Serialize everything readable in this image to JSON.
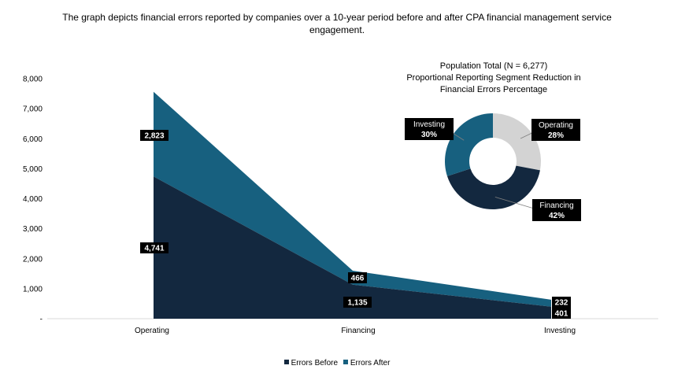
{
  "page_title": {
    "line1": "The graph depicts financial errors reported by companies over a 10-year period before and after CPA financial management service",
    "line2": "engagement."
  },
  "colors": {
    "errors_before": "#13283F",
    "errors_after": "#17607F",
    "pie_operating": "#D3D3D3",
    "pie_financing": "#13283F",
    "pie_investing": "#17607F",
    "label_bg": "#000000",
    "axis": "#D9D9D9"
  },
  "legend": {
    "before_label": "Errors Before",
    "after_label": "Errors After"
  },
  "chart_data": [
    {
      "type": "area",
      "stacked": true,
      "categories": [
        "Operating",
        "Financing",
        "Investing"
      ],
      "series": [
        {
          "name": "Errors Before",
          "values": [
            4741,
            1135,
            401
          ]
        },
        {
          "name": "Errors After",
          "values": [
            2823,
            466,
            232
          ]
        }
      ],
      "data_labels": {
        "Errors Before": [
          "4,741",
          "1,135",
          "401"
        ],
        "Errors After": [
          "2,823",
          "466",
          "232"
        ]
      },
      "ylim": [
        0,
        8000
      ],
      "yticks": [
        0,
        1000,
        2000,
        3000,
        4000,
        5000,
        6000,
        7000,
        8000
      ],
      "ytick_labels": [
        "-",
        "1,000",
        "2,000",
        "3,000",
        "4,000",
        "5,000",
        "6,000",
        "7,000",
        "8,000"
      ],
      "grid": false,
      "legend_position": "bottom"
    },
    {
      "type": "pie",
      "donut": true,
      "title_lines": [
        "Population Total (N = 6,277)",
        "Proportional Reporting Segment Reduction in",
        "Financial Errors Percentage"
      ],
      "slices": [
        {
          "label": "Operating",
          "value": 28,
          "value_label": "28%"
        },
        {
          "label": "Financing",
          "value": 42,
          "value_label": "42%"
        },
        {
          "label": "Investing",
          "value": 30,
          "value_label": "30%"
        }
      ]
    }
  ]
}
